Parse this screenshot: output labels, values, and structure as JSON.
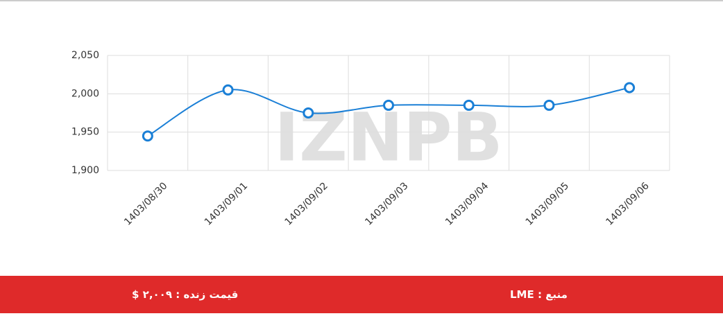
{
  "chart_data": {
    "type": "line",
    "watermark": "IZNPB",
    "categories": [
      "1403/08/30",
      "1403/09/01",
      "1403/09/02",
      "1403/09/03",
      "1403/09/04",
      "1403/09/05",
      "1403/09/06"
    ],
    "series": [
      {
        "color": "#1a7fd6",
        "values": [
          1945,
          2005,
          1975,
          1985,
          1985,
          1985,
          2008
        ]
      }
    ],
    "ylim": [
      1900,
      2050
    ],
    "yticks": [
      {
        "value": 1900,
        "label": "1,900"
      },
      {
        "value": 1950,
        "label": "1,950"
      },
      {
        "value": 2000,
        "label": "2,000"
      },
      {
        "value": 2050,
        "label": "2,050"
      }
    ],
    "grid": true
  },
  "footer": {
    "live_price": "قیمت زنده : ۲,۰۰۹ $",
    "source": "منبع : LME"
  }
}
